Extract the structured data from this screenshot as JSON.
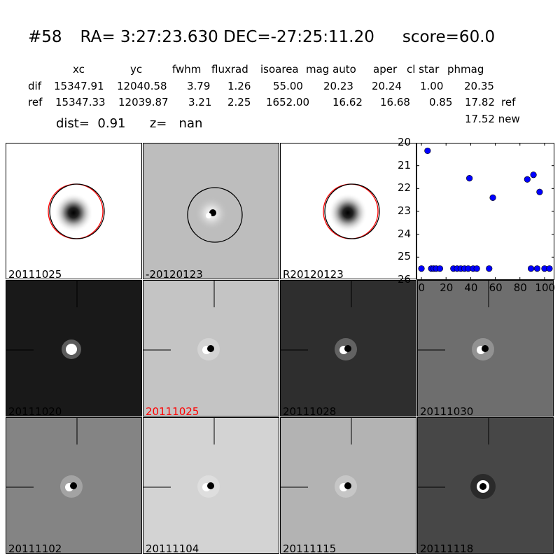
{
  "header": {
    "id": "#58",
    "ra": "RA= 3:27:23.630",
    "dec": "DEC=-27:25:11.20",
    "score": "score=60.0"
  },
  "table": {
    "columns": [
      "xc",
      "yc",
      "fwhm",
      "fluxrad",
      "isoarea",
      "mag auto",
      "aper",
      "cl star",
      "phmag"
    ],
    "rows": [
      {
        "label": "dif",
        "values": [
          "15347.91",
          "12040.58",
          "3.79",
          "1.26",
          "55.00",
          "20.23",
          "20.24",
          "1.00",
          "20.35"
        ],
        "suffix": ""
      },
      {
        "label": "ref",
        "values": [
          "15347.33",
          "12039.87",
          "3.21",
          "2.25",
          "1652.00",
          "16.62",
          "16.68",
          "0.85",
          "17.82"
        ],
        "suffix": "ref"
      }
    ],
    "phmag_new": "17.52 new"
  },
  "dist": {
    "dist_label": "dist=",
    "dist_value": "0.91",
    "z_label": "z=",
    "z_value": "nan"
  },
  "top_panels": [
    {
      "label": "20111025",
      "label_color": "#000000",
      "background": "#ffffff"
    },
    {
      "label": "-20120123",
      "label_color": "#000000",
      "background": "#bdbdbd"
    },
    {
      "label": "R20120123",
      "label_color": "#000000",
      "background": "#ffffff"
    }
  ],
  "grid_panels": [
    {
      "label": "20111020",
      "label_color": "#000000",
      "background": "#191919"
    },
    {
      "label": "20111025",
      "label_color": "#ff0000",
      "background": "#c4c4c4"
    },
    {
      "label": "20111028",
      "label_color": "#000000",
      "background": "#2e2e2e"
    },
    {
      "label": "20111030",
      "label_color": "#000000",
      "background": "#6e6e6e"
    },
    {
      "label": "20111102",
      "label_color": "#000000",
      "background": "#848484"
    },
    {
      "label": "20111104",
      "label_color": "#000000",
      "background": "#d3d3d3"
    },
    {
      "label": "20111115",
      "label_color": "#000000",
      "background": "#b3b3b3"
    },
    {
      "label": "20111118",
      "label_color": "#000000",
      "background": "#474747"
    }
  ],
  "chart_data": {
    "type": "scatter",
    "title": "",
    "xlabel": "",
    "ylabel": "",
    "xlim": [
      -4,
      108
    ],
    "ylim": [
      26,
      20
    ],
    "y_inverted": true,
    "xticks": [
      0,
      20,
      40,
      60,
      80,
      100
    ],
    "yticks": [
      20,
      21,
      22,
      23,
      24,
      25,
      26
    ],
    "marker_color": "#0000ff",
    "points": [
      {
        "x": 0,
        "y": 25.5
      },
      {
        "x": 5,
        "y": 20.35
      },
      {
        "x": 8,
        "y": 25.5
      },
      {
        "x": 10,
        "y": 25.5
      },
      {
        "x": 12,
        "y": 25.5
      },
      {
        "x": 15,
        "y": 25.5
      },
      {
        "x": 26,
        "y": 25.5
      },
      {
        "x": 29,
        "y": 25.5
      },
      {
        "x": 32,
        "y": 25.5
      },
      {
        "x": 35,
        "y": 25.5
      },
      {
        "x": 38,
        "y": 25.5
      },
      {
        "x": 39,
        "y": 21.55
      },
      {
        "x": 42,
        "y": 25.5
      },
      {
        "x": 45,
        "y": 25.5
      },
      {
        "x": 55,
        "y": 25.5
      },
      {
        "x": 58,
        "y": 22.4
      },
      {
        "x": 86,
        "y": 21.6
      },
      {
        "x": 89,
        "y": 25.5
      },
      {
        "x": 91,
        "y": 21.4
      },
      {
        "x": 94,
        "y": 25.5
      },
      {
        "x": 96,
        "y": 22.15
      },
      {
        "x": 100,
        "y": 25.5
      },
      {
        "x": 104,
        "y": 25.5
      }
    ]
  }
}
